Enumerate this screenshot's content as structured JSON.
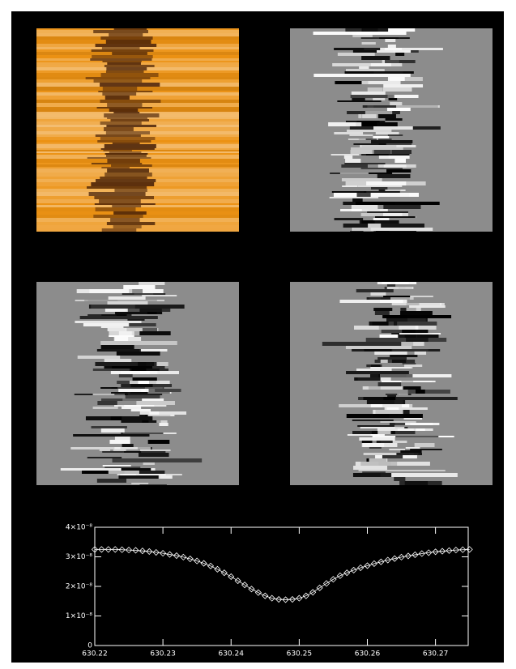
{
  "chart_data": {
    "type": "line",
    "color": "#ffffff",
    "marker": "diamond",
    "x": [
      630.22,
      630.221,
      630.222,
      630.223,
      630.224,
      630.225,
      630.226,
      630.227,
      630.228,
      630.229,
      630.23,
      630.231,
      630.232,
      630.233,
      630.234,
      630.235,
      630.236,
      630.237,
      630.238,
      630.239,
      630.24,
      630.241,
      630.242,
      630.243,
      630.244,
      630.245,
      630.246,
      630.247,
      630.248,
      630.249,
      630.25,
      630.251,
      630.252,
      630.253,
      630.254,
      630.255,
      630.256,
      630.257,
      630.258,
      630.259,
      630.26,
      630.261,
      630.262,
      630.263,
      630.264,
      630.265,
      630.266,
      630.267,
      630.268,
      630.269,
      630.27,
      630.271,
      630.272,
      630.273,
      630.274,
      630.275
    ],
    "values": [
      3.25e-08,
      3.25e-08,
      3.25e-08,
      3.25e-08,
      3.24e-08,
      3.23e-08,
      3.22e-08,
      3.2e-08,
      3.18e-08,
      3.15e-08,
      3.12e-08,
      3.08e-08,
      3.04e-08,
      2.99e-08,
      2.93e-08,
      2.86e-08,
      2.78e-08,
      2.69e-08,
      2.58e-08,
      2.46e-08,
      2.33e-08,
      2.19e-08,
      2.05e-08,
      1.91e-08,
      1.79e-08,
      1.68e-08,
      1.6e-08,
      1.56e-08,
      1.55e-08,
      1.56e-08,
      1.6e-08,
      1.68e-08,
      1.8e-08,
      1.95e-08,
      2.1e-08,
      2.24e-08,
      2.36e-08,
      2.46e-08,
      2.55e-08,
      2.63e-08,
      2.7e-08,
      2.77e-08,
      2.83e-08,
      2.89e-08,
      2.94e-08,
      2.99e-08,
      3.03e-08,
      3.07e-08,
      3.11e-08,
      3.14e-08,
      3.17e-08,
      3.19e-08,
      3.21e-08,
      3.23e-08,
      3.24e-08,
      3.25e-08
    ],
    "xlim": [
      630.22,
      630.2748
    ],
    "xticks": [
      630.22,
      630.23,
      630.24,
      630.25,
      630.26,
      630.27
    ],
    "ylim": [
      0,
      4e-08
    ],
    "yticks": [
      0,
      {
        "value": 1e-08,
        "label": "1×10⁻⁸"
      },
      {
        "value": 2e-08,
        "label": "2×10⁻⁸"
      },
      {
        "value": 3e-08,
        "label": "3×10⁻⁸"
      },
      {
        "value": 4e-08,
        "label": "4×10⁻⁸"
      }
    ]
  }
}
